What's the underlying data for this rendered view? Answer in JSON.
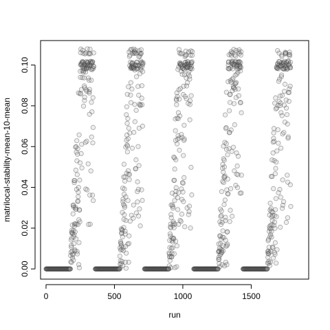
{
  "chart_data": {
    "type": "scatter",
    "title": "",
    "xlabel": "run",
    "ylabel": "matrilocal-stability-mean-10-mean",
    "xlim": [
      -40,
      1920
    ],
    "ylim": [
      -0.005,
      0.112
    ],
    "x_ticks": [
      0,
      500,
      1000,
      1500
    ],
    "x_tick_labels": [
      "0",
      "500",
      "1000",
      "1500"
    ],
    "y_ticks": [
      0.0,
      0.02,
      0.04,
      0.06,
      0.08,
      0.1
    ],
    "y_tick_labels": [
      "0.00",
      "0.02",
      "0.04",
      "0.06",
      "0.08",
      "0.10"
    ],
    "grid": false,
    "legend": "none",
    "point_style": "open circle, semi-transparent gray",
    "blocks": [
      {
        "zero_runs": [
          0,
          180
        ],
        "ramp_runs": [
          180,
          250
        ],
        "plateau_runs": [
          250,
          350
        ]
      },
      {
        "zero_runs": [
          360,
          540
        ],
        "ramp_runs": [
          540,
          610
        ],
        "plateau_runs": [
          610,
          710
        ]
      },
      {
        "zero_runs": [
          720,
          900
        ],
        "ramp_runs": [
          900,
          970
        ],
        "plateau_runs": [
          970,
          1070
        ]
      },
      {
        "zero_runs": [
          1080,
          1260
        ],
        "ramp_runs": [
          1260,
          1330
        ],
        "plateau_runs": [
          1330,
          1430
        ]
      },
      {
        "zero_runs": [
          1440,
          1620
        ],
        "ramp_runs": [
          1620,
          1690
        ],
        "plateau_runs": [
          1690,
          1790
        ]
      }
    ],
    "cluster_value": 0.1,
    "max_value": 0.108
  }
}
